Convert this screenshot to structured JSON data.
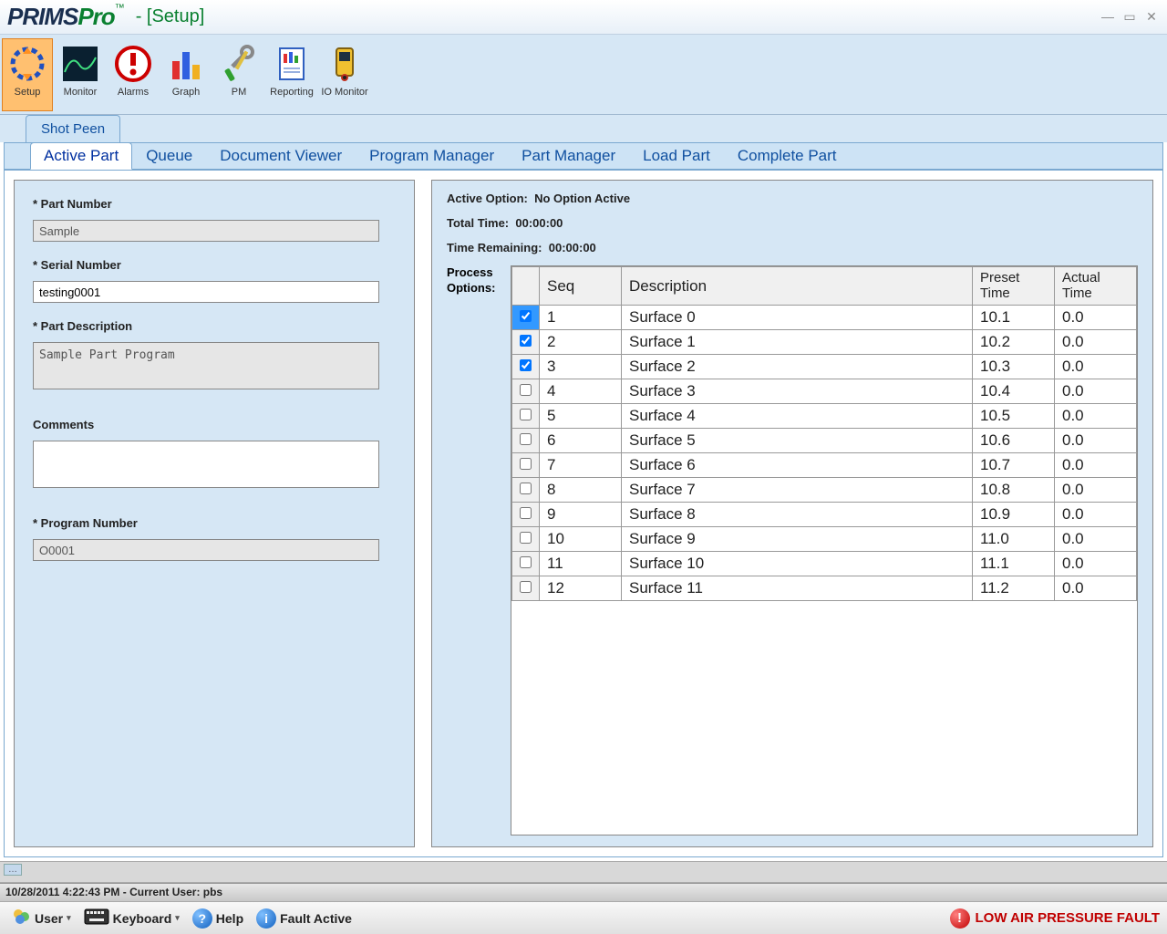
{
  "window": {
    "title": "- [Setup]"
  },
  "logo": {
    "part1": "PRIMS",
    "part2": "Pro",
    "tm": "™"
  },
  "toolbar": [
    {
      "label": "Setup",
      "active": true
    },
    {
      "label": "Monitor",
      "active": false
    },
    {
      "label": "Alarms",
      "active": false
    },
    {
      "label": "Graph",
      "active": false
    },
    {
      "label": "PM",
      "active": false
    },
    {
      "label": "Reporting",
      "active": false
    },
    {
      "label": "IO Monitor",
      "active": false
    }
  ],
  "tab_group1": [
    {
      "label": "Shot Peen",
      "active": true
    }
  ],
  "tab_group2": [
    {
      "label": "Active Part",
      "active": true
    },
    {
      "label": "Queue"
    },
    {
      "label": "Document Viewer"
    },
    {
      "label": "Program Manager"
    },
    {
      "label": "Part Manager"
    },
    {
      "label": "Load Part"
    },
    {
      "label": "Complete Part"
    }
  ],
  "form": {
    "part_number_label": "* Part Number",
    "part_number": "Sample",
    "serial_number_label": "* Serial Number",
    "serial_number": "testing0001",
    "part_description_label": "* Part Description",
    "part_description": "Sample Part Program",
    "comments_label": "Comments",
    "comments": "",
    "program_number_label": "* Program Number",
    "program_number": "O0001"
  },
  "info": {
    "active_option_label": "Active Option:",
    "active_option_value": "No Option Active",
    "total_time_label": "Total Time:",
    "total_time_value": "00:00:00",
    "time_remaining_label": "Time Remaining:",
    "time_remaining_value": "00:00:00",
    "process_options_label": "Process Options:"
  },
  "grid": {
    "columns": {
      "seq": "Seq",
      "description": "Description",
      "preset_time": "Preset Time",
      "actual_time": "Actual Time"
    },
    "rows": [
      {
        "checked": true,
        "selected": true,
        "seq": "1",
        "desc": "Surface 0",
        "preset": "10.1",
        "actual": "0.0"
      },
      {
        "checked": true,
        "selected": false,
        "seq": "2",
        "desc": "Surface 1",
        "preset": "10.2",
        "actual": "0.0"
      },
      {
        "checked": true,
        "selected": false,
        "seq": "3",
        "desc": "Surface 2",
        "preset": "10.3",
        "actual": "0.0"
      },
      {
        "checked": false,
        "selected": false,
        "seq": "4",
        "desc": "Surface 3",
        "preset": "10.4",
        "actual": "0.0"
      },
      {
        "checked": false,
        "selected": false,
        "seq": "5",
        "desc": "Surface 4",
        "preset": "10.5",
        "actual": "0.0"
      },
      {
        "checked": false,
        "selected": false,
        "seq": "6",
        "desc": "Surface 5",
        "preset": "10.6",
        "actual": "0.0"
      },
      {
        "checked": false,
        "selected": false,
        "seq": "7",
        "desc": "Surface 6",
        "preset": "10.7",
        "actual": "0.0"
      },
      {
        "checked": false,
        "selected": false,
        "seq": "8",
        "desc": "Surface 7",
        "preset": "10.8",
        "actual": "0.0"
      },
      {
        "checked": false,
        "selected": false,
        "seq": "9",
        "desc": "Surface 8",
        "preset": "10.9",
        "actual": "0.0"
      },
      {
        "checked": false,
        "selected": false,
        "seq": "10",
        "desc": "Surface 9",
        "preset": "11.0",
        "actual": "0.0"
      },
      {
        "checked": false,
        "selected": false,
        "seq": "11",
        "desc": "Surface 10",
        "preset": "11.1",
        "actual": "0.0"
      },
      {
        "checked": false,
        "selected": false,
        "seq": "12",
        "desc": "Surface 11",
        "preset": "11.2",
        "actual": "0.0"
      }
    ]
  },
  "status": {
    "text": "10/28/2011 4:22:43 PM - Current User:  pbs"
  },
  "bottom": {
    "user": "User",
    "keyboard": "Keyboard",
    "help": "Help",
    "fault_active": "Fault Active",
    "fault_msg": "LOW AIR PRESSURE FAULT"
  },
  "colors": {
    "header_bg": "#d6e7f5",
    "tab_active_bg": "#ffffff",
    "tool_active_bg": "#ffc070",
    "logo_dark": "#1a2f50",
    "logo_green": "#0a8030",
    "link_blue": "#1050a0",
    "fault_red": "#c00000"
  }
}
